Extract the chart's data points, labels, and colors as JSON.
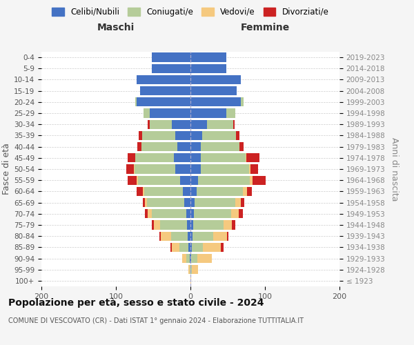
{
  "age_groups": [
    "100+",
    "95-99",
    "90-94",
    "85-89",
    "80-84",
    "75-79",
    "70-74",
    "65-69",
    "60-64",
    "55-59",
    "50-54",
    "45-49",
    "40-44",
    "35-39",
    "30-34",
    "25-29",
    "20-24",
    "15-19",
    "10-14",
    "5-9",
    "0-4"
  ],
  "birth_years": [
    "≤ 1923",
    "1924-1928",
    "1929-1933",
    "1934-1938",
    "1939-1943",
    "1944-1948",
    "1949-1953",
    "1954-1958",
    "1959-1963",
    "1964-1968",
    "1969-1973",
    "1974-1978",
    "1979-1983",
    "1984-1988",
    "1989-1993",
    "1994-1998",
    "1999-2003",
    "2004-2008",
    "2009-2013",
    "2014-2018",
    "2019-2023"
  ],
  "colors": {
    "celibe": "#4472c4",
    "coniugato": "#b5cc99",
    "vedovo": "#f5c97f",
    "divorziato": "#cc2222"
  },
  "maschi": {
    "celibe": [
      0,
      0,
      1,
      3,
      4,
      5,
      6,
      8,
      10,
      14,
      20,
      22,
      18,
      20,
      25,
      55,
      72,
      68,
      72,
      52,
      52
    ],
    "coniugato": [
      0,
      1,
      5,
      12,
      22,
      36,
      46,
      50,
      52,
      56,
      55,
      52,
      48,
      45,
      30,
      8,
      2,
      0,
      0,
      0,
      0
    ],
    "vedovo": [
      0,
      2,
      5,
      10,
      14,
      8,
      5,
      3,
      2,
      2,
      1,
      0,
      0,
      0,
      0,
      0,
      0,
      0,
      0,
      0,
      0
    ],
    "divorziato": [
      0,
      0,
      0,
      2,
      2,
      3,
      4,
      3,
      8,
      12,
      10,
      10,
      5,
      4,
      2,
      0,
      0,
      0,
      0,
      0,
      0
    ]
  },
  "femmine": {
    "nubile": [
      0,
      0,
      1,
      2,
      3,
      4,
      5,
      6,
      8,
      10,
      14,
      14,
      14,
      16,
      22,
      48,
      68,
      62,
      68,
      48,
      48
    ],
    "coniugata": [
      0,
      2,
      8,
      15,
      28,
      40,
      50,
      54,
      62,
      70,
      65,
      60,
      52,
      45,
      35,
      12,
      3,
      0,
      0,
      0,
      0
    ],
    "vedova": [
      1,
      8,
      20,
      24,
      18,
      12,
      10,
      8,
      6,
      3,
      2,
      1,
      0,
      0,
      0,
      0,
      0,
      0,
      0,
      0,
      0
    ],
    "divorziata": [
      0,
      0,
      0,
      3,
      2,
      4,
      5,
      4,
      6,
      18,
      10,
      18,
      5,
      5,
      2,
      0,
      0,
      0,
      0,
      0,
      0
    ]
  },
  "xlim": 200,
  "xticks": [
    -200,
    -100,
    0,
    100,
    200
  ],
  "xticklabels": [
    "200",
    "100",
    "0",
    "100",
    "200"
  ],
  "title": "Popolazione per età, sesso e stato civile - 2024",
  "subtitle": "COMUNE DI VESCOVATO (CR) - Dati ISTAT 1° gennaio 2024 - Elaborazione TUTTITALIA.IT",
  "ylabel_left": "Fasce di età",
  "ylabel_right": "Anni di nascita",
  "maschi_label": "Maschi",
  "femmine_label": "Femmine",
  "legend_labels": [
    "Celibi/Nubili",
    "Coniugati/e",
    "Vedovi/e",
    "Divorziati/e"
  ],
  "bg_color": "#f5f5f5",
  "plot_bg_color": "#ffffff"
}
